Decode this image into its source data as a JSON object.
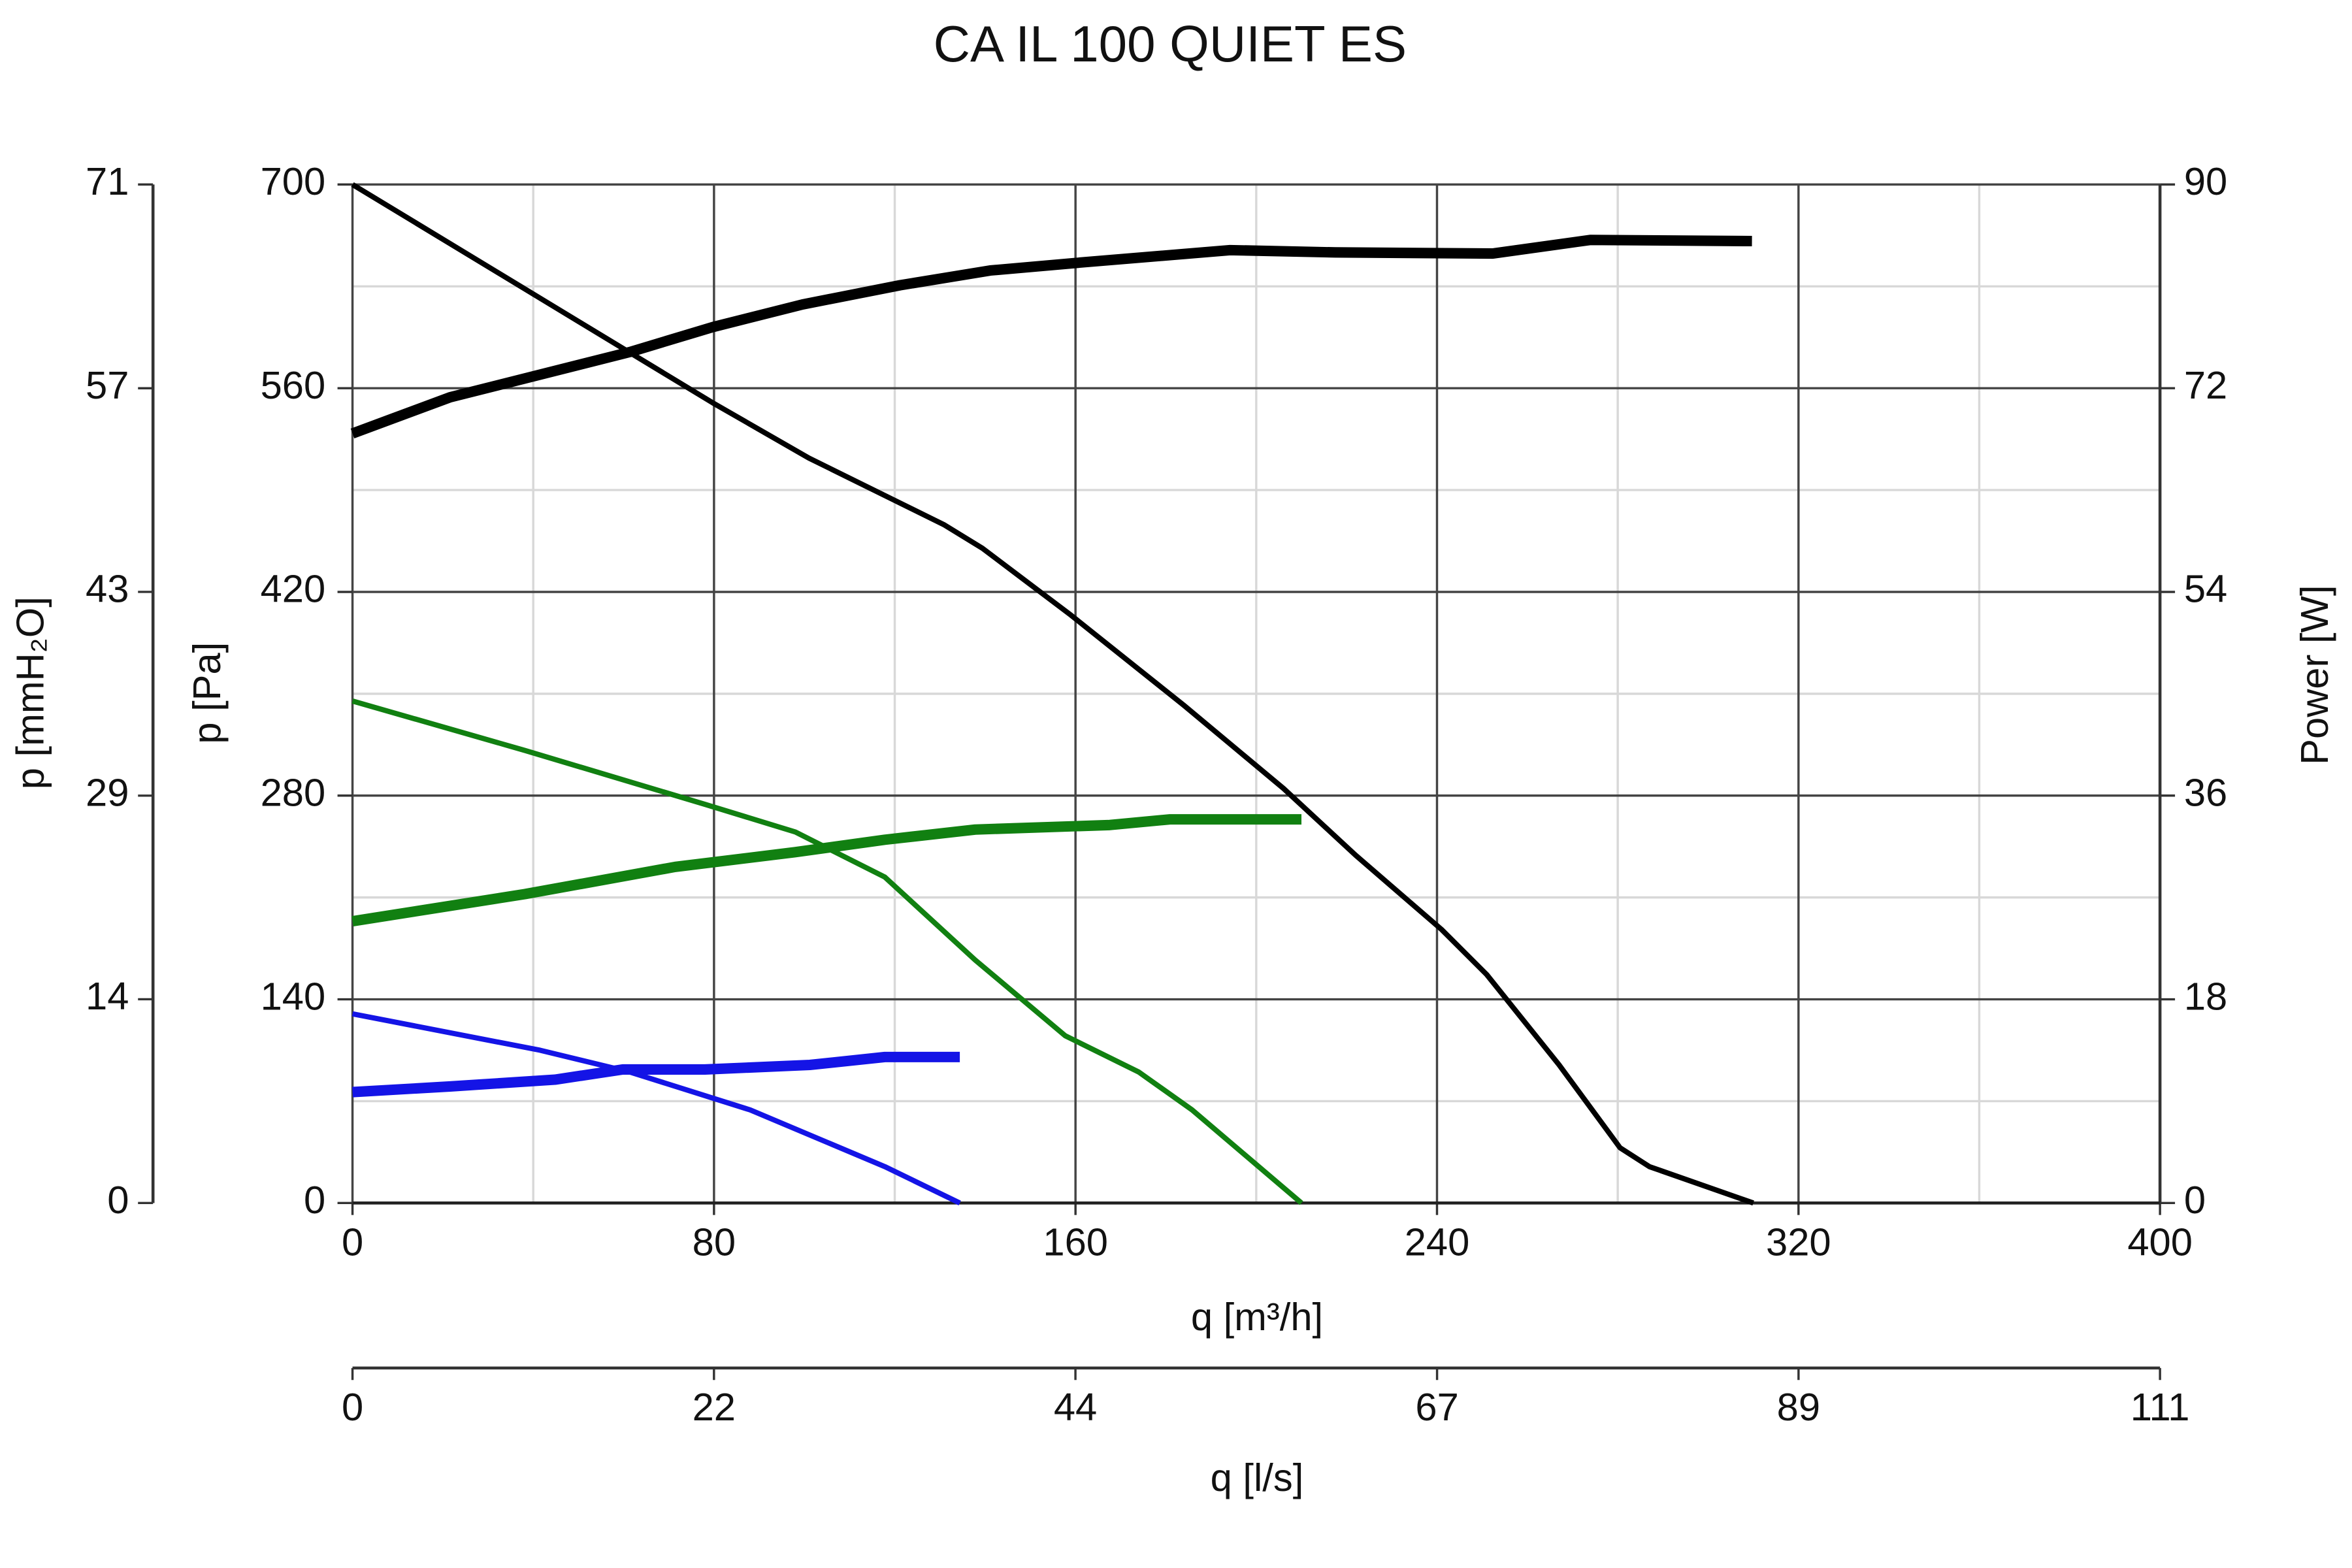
{
  "chart_data": {
    "type": "line",
    "title": "CA IL 100 QUIET ES",
    "x_label": "q [m³/h]",
    "y_label": "p [Pa]",
    "y2_label": "Power [W]",
    "y3_label": "p [mmH₂O]",
    "x2_label": "q [l/s]",
    "xlim": [
      0,
      400
    ],
    "xticks": [
      0,
      80,
      160,
      240,
      320,
      400
    ],
    "x_minor_ticks": [
      40,
      120,
      200,
      280,
      360
    ],
    "ylim": [
      0,
      700
    ],
    "yticks": [
      0,
      140,
      280,
      420,
      560,
      700
    ],
    "y_minor_ticks": [
      70,
      210,
      350,
      490,
      630
    ],
    "y2lim": [
      0,
      90
    ],
    "y2ticks": [
      0,
      18,
      36,
      54,
      72,
      90
    ],
    "y3lim": [
      0,
      71.38
    ],
    "y3ticks": [
      0,
      {
        "value": 14.28,
        "label": "14"
      },
      {
        "value": 28.55,
        "label": "29"
      },
      {
        "value": 42.83,
        "label": "43"
      },
      {
        "value": 57.1,
        "label": "57"
      },
      {
        "value": 71.38,
        "label": "71"
      }
    ],
    "x2lim": [
      0,
      111.11
    ],
    "x2ticks": [
      0,
      {
        "value": 22.22,
        "label": "22"
      },
      {
        "value": 44.44,
        "label": "44"
      },
      {
        "value": 66.67,
        "label": "67"
      },
      {
        "value": 88.89,
        "label": "89"
      },
      {
        "value": 111.11,
        "label": "111"
      }
    ],
    "grid": true,
    "series": [
      {
        "color": "#000000",
        "x": [
          0,
          79.7,
          101,
          131,
          139.4,
          159,
          184,
          206,
          222,
          241,
          251,
          267,
          280.5,
          287,
          310
        ],
        "values": [
          700,
          550,
          512,
          466,
          450,
          404,
          342,
          285,
          239,
          188,
          157,
          95,
          38,
          25,
          0
        ]
      },
      {
        "color": "#000000",
        "axis": "y2",
        "x": [
          0,
          21.6,
          61.4,
          79.7,
          99.6,
          121.2,
          141.1,
          161,
          194.2,
          217.4,
          252.3,
          273.9,
          309.7
        ],
        "values": [
          68,
          71.2,
          75.2,
          77.4,
          79.4,
          81.1,
          82.4,
          83.1,
          84.2,
          84.0,
          83.9,
          85.1,
          85.0
        ]
      },
      {
        "color": "#118011",
        "x": [
          0,
          38.2,
          78,
          98,
          117.8,
          137.8,
          157.7,
          174,
          185.8,
          210
        ],
        "values": [
          345,
          311,
          274,
          255,
          224,
          167,
          115,
          90,
          64,
          0
        ]
      },
      {
        "color": "#118011",
        "axis": "y2",
        "x": [
          0,
          38.2,
          71.4,
          97.9,
          117.8,
          137.8,
          167.6,
          180.9,
          210
        ],
        "values": [
          24.9,
          27.3,
          29.7,
          31.0,
          32.1,
          33.0,
          33.4,
          33.9,
          33.9
        ]
      },
      {
        "color": "#1414e6",
        "x": [
          0,
          41.5,
          61.4,
          88,
          117.8,
          134.4
        ],
        "values": [
          130,
          105,
          90,
          64,
          25,
          0
        ]
      },
      {
        "color": "#1414e6",
        "axis": "y2",
        "x": [
          0,
          21.6,
          44.8,
          59.8,
          78,
          101.2,
          117.8,
          134.4
        ],
        "values": [
          9.8,
          10.3,
          10.9,
          11.8,
          11.8,
          12.2,
          12.9,
          12.9
        ]
      }
    ]
  }
}
